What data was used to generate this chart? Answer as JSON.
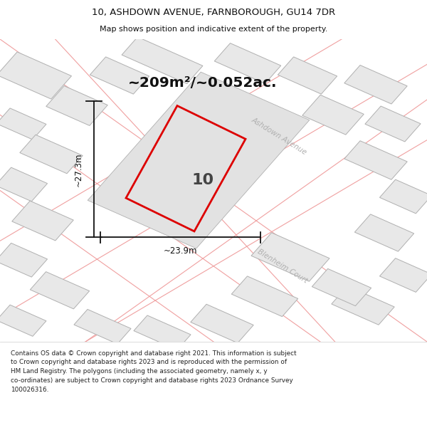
{
  "title_line1": "10, ASHDOWN AVENUE, FARNBOROUGH, GU14 7DR",
  "title_line2": "Map shows position and indicative extent of the property.",
  "area_label": "~209m²/~0.052ac.",
  "number_label": "10",
  "dim_width": "~23.9m",
  "dim_height": "~27.3m",
  "street_label1": "Ashdown Avenue",
  "street_label2": "Blenheim Court",
  "footer_lines": [
    "Contains OS data © Crown copyright and database right 2021. This information is subject",
    "to Crown copyright and database rights 2023 and is reproduced with the permission of",
    "HM Land Registry. The polygons (including the associated geometry, namely x, y",
    "co-ordinates) are subject to Crown copyright and database rights 2023 Ordnance Survey",
    "100026316."
  ],
  "bg_color": "#f5f5f5",
  "white": "#ffffff",
  "parcel_fill": "#e8e8e8",
  "parcel_edge": "#b0b0b0",
  "road_pink": "#f0a0a0",
  "red_color": "#dd0000",
  "dim_color": "#111111",
  "street_color": "#b0b0b0",
  "area_color": "#111111",
  "num_color": "#444444",
  "title_color": "#111111",
  "footer_color": "#222222"
}
